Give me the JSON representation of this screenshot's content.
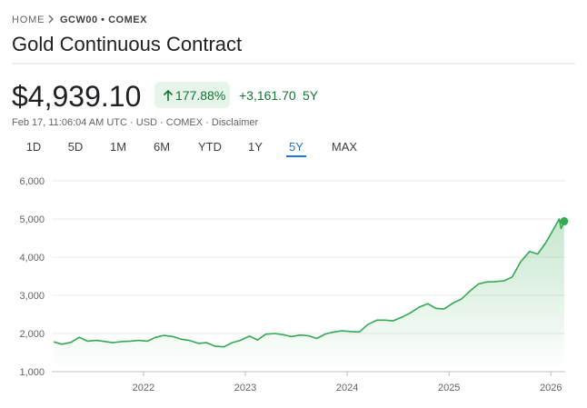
{
  "breadcrumb": {
    "home": "HOME",
    "ticker": "GCW00 • COMEX"
  },
  "title": "Gold Continuous Contract",
  "price": "$4,939.10",
  "change_pct": "177.88%",
  "change_abs": "+3,161.70",
  "change_period": "5Y",
  "timestamp": "Feb 17, 11:06:04 AM UTC · USD · COMEX · ",
  "disclaimer": "Disclaimer",
  "ranges": [
    "1D",
    "5D",
    "1M",
    "6M",
    "YTD",
    "1Y",
    "5Y",
    "MAX"
  ],
  "selected_range": "5Y",
  "chart_data": {
    "type": "line",
    "color": "#34a853",
    "grid": true,
    "x": [
      2021.12,
      2021.2,
      2021.29,
      2021.37,
      2021.45,
      2021.54,
      2021.62,
      2021.7,
      2021.79,
      2021.87,
      2021.95,
      2022.04,
      2022.12,
      2022.2,
      2022.29,
      2022.37,
      2022.45,
      2022.54,
      2022.62,
      2022.7,
      2022.79,
      2022.87,
      2022.95,
      2023.04,
      2023.12,
      2023.2,
      2023.29,
      2023.37,
      2023.45,
      2023.54,
      2023.62,
      2023.7,
      2023.79,
      2023.87,
      2023.95,
      2024.04,
      2024.12,
      2024.2,
      2024.29,
      2024.37,
      2024.45,
      2024.54,
      2024.62,
      2024.7,
      2024.79,
      2024.87,
      2024.95,
      2025.04,
      2025.12,
      2025.2,
      2025.29,
      2025.37,
      2025.45,
      2025.54,
      2025.62,
      2025.7,
      2025.79,
      2025.87,
      2025.95,
      2026.04,
      2026.08,
      2026.1,
      2026.13
    ],
    "values": [
      1780,
      1720,
      1770,
      1900,
      1800,
      1820,
      1790,
      1760,
      1790,
      1800,
      1820,
      1800,
      1900,
      1950,
      1920,
      1850,
      1820,
      1740,
      1760,
      1670,
      1650,
      1760,
      1820,
      1930,
      1830,
      1980,
      2000,
      1970,
      1920,
      1960,
      1940,
      1870,
      1990,
      2040,
      2070,
      2050,
      2040,
      2230,
      2350,
      2350,
      2330,
      2430,
      2540,
      2680,
      2780,
      2660,
      2640,
      2800,
      2900,
      3100,
      3300,
      3350,
      3360,
      3380,
      3480,
      3870,
      4150,
      4080,
      4380,
      4800,
      5000,
      4750,
      4939.1
    ],
    "xlim": [
      2021.1,
      2026.14
    ],
    "xticks": [
      2022,
      2023,
      2024,
      2025,
      2026
    ],
    "ylim": [
      1000,
      6000
    ],
    "yticks": [
      {
        "value": 1000,
        "label": "1,000"
      },
      {
        "value": 2000,
        "label": "2,000"
      },
      {
        "value": 3000,
        "label": "3,000"
      },
      {
        "value": 4000,
        "label": "4,000"
      },
      {
        "value": 5000,
        "label": "5,000"
      },
      {
        "value": 6000,
        "label": "6,000"
      }
    ]
  }
}
